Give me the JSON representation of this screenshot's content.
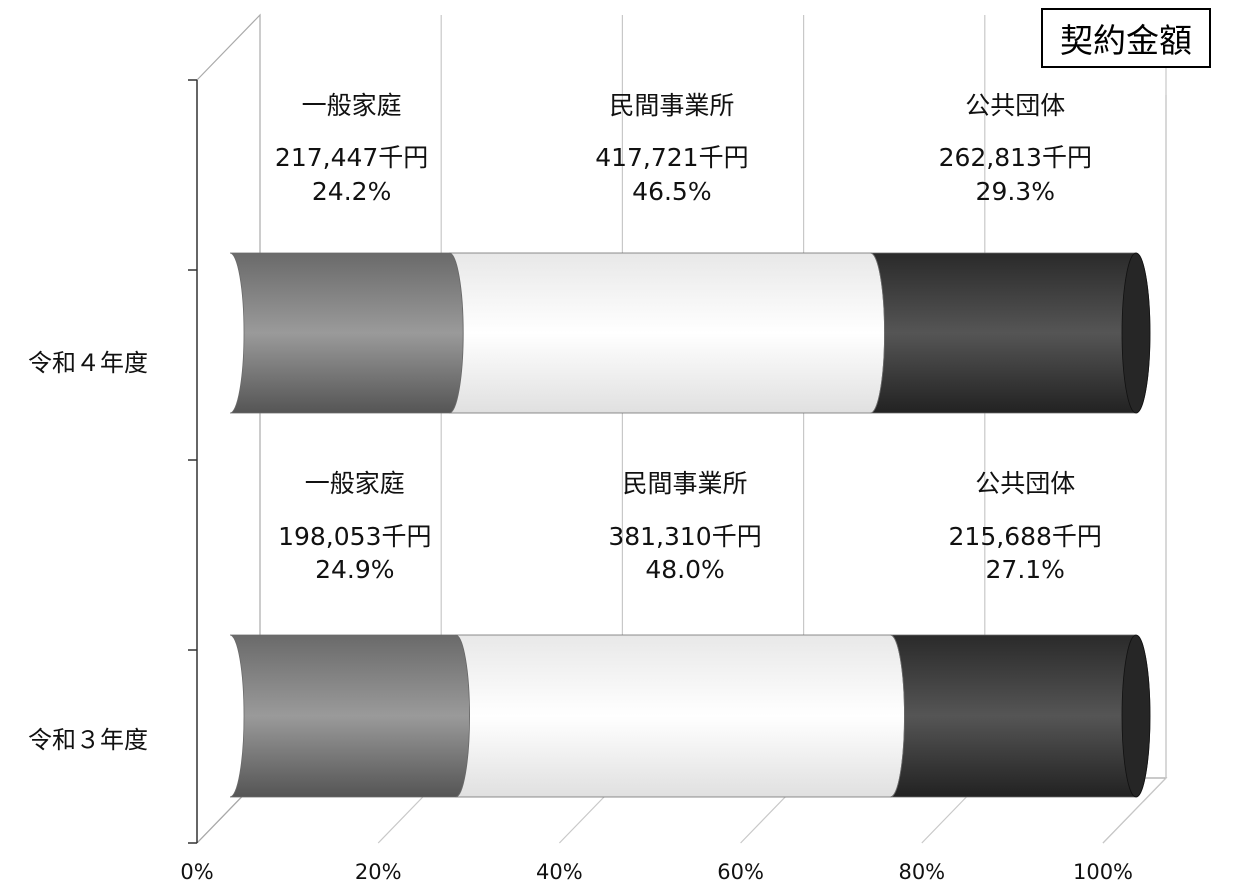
{
  "chart_data": {
    "type": "bar",
    "orientation": "horizontal",
    "stacking": "percent",
    "style": "3d-cylinder",
    "title": "契約金額",
    "categories": [
      "令和４年度",
      "令和３年度"
    ],
    "x_ticks": [
      "0%",
      "20%",
      "40%",
      "60%",
      "80%",
      "100%"
    ],
    "xlim": [
      0,
      100
    ],
    "grid": true,
    "legend": "none",
    "unit": "千円",
    "series": [
      {
        "name": "一般家庭",
        "color": "#8a8a8a",
        "values": [
          24.2,
          24.9
        ],
        "amounts": [
          "217,447",
          "198,053"
        ]
      },
      {
        "name": "民間事業所",
        "color": "#ffffff",
        "values": [
          46.5,
          48.0
        ],
        "amounts": [
          "417,721",
          "381,310"
        ]
      },
      {
        "name": "公共団体",
        "color": "#3a3a3a",
        "values": [
          29.3,
          27.1
        ],
        "amounts": [
          "262,813",
          "215,688"
        ]
      }
    ]
  }
}
